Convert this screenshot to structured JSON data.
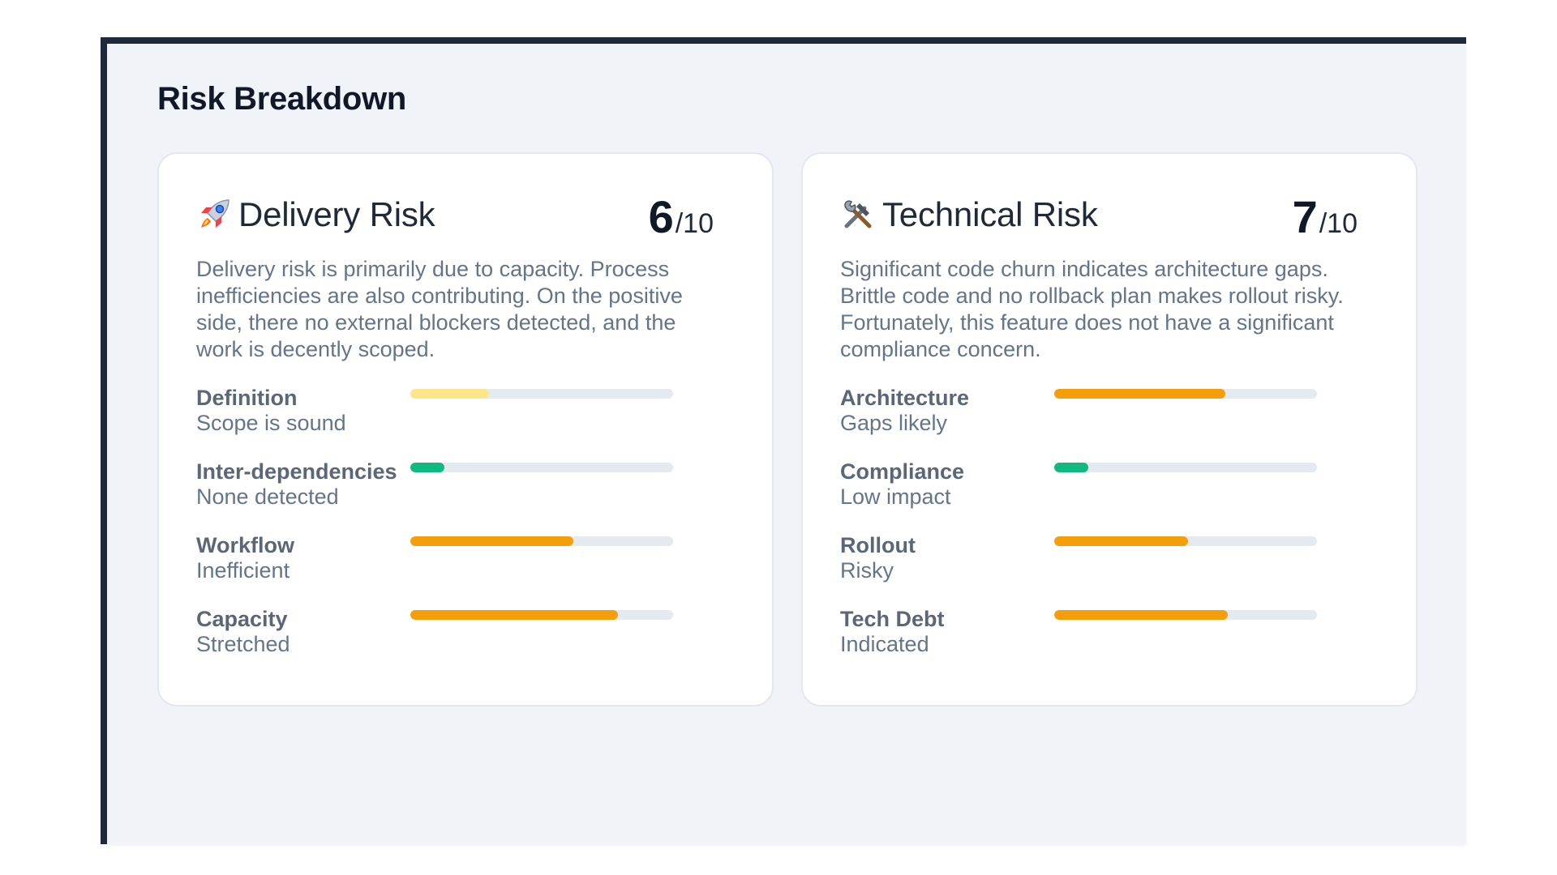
{
  "page": {
    "title": "Risk Breakdown"
  },
  "colors": {
    "frame_border": "#1e293b",
    "frame_bg": "#f0f3f8",
    "track": "#e5e9f0",
    "low": "#10b981",
    "medium_low": "#fde68a",
    "high": "#f59e0b"
  },
  "cards": [
    {
      "icon": "rocket-icon",
      "title": "Delivery Risk",
      "score": "6",
      "score_total": "/10",
      "summary": "Delivery risk is primarily due to capacity. Process inefficiencies are also contributing. On the positive side, there no external blockers detected, and the work is decently scoped.",
      "metrics": [
        {
          "label": "Definition",
          "status": "Scope is sound",
          "level": 0.3,
          "color": "#fde68a"
        },
        {
          "label": "Inter-dependencies",
          "status": "None detected",
          "level": 0.13,
          "color": "#10b981"
        },
        {
          "label": "Workflow",
          "status": "Inefficient",
          "level": 0.62,
          "color": "#f59e0b"
        },
        {
          "label": "Capacity",
          "status": "Stretched",
          "level": 0.79,
          "color": "#f59e0b"
        }
      ]
    },
    {
      "icon": "hammer-wrench-icon",
      "title": "Technical Risk",
      "score": "7",
      "score_total": "/10",
      "summary": "Significant code churn indicates architecture gaps. Brittle code and no rollback plan makes rollout risky. Fortunately, this feature does not have a significant compliance concern.",
      "metrics": [
        {
          "label": "Architecture",
          "status": "Gaps likely",
          "level": 0.65,
          "color": "#f59e0b"
        },
        {
          "label": "Compliance",
          "status": "Low impact",
          "level": 0.13,
          "color": "#10b981"
        },
        {
          "label": "Rollout",
          "status": "Risky",
          "level": 0.51,
          "color": "#f59e0b"
        },
        {
          "label": "Tech Debt",
          "status": "Indicated",
          "level": 0.66,
          "color": "#f59e0b"
        }
      ]
    }
  ]
}
